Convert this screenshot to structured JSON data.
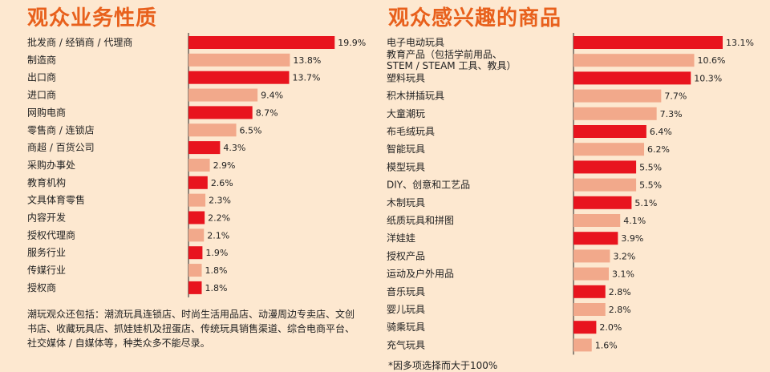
{
  "colors": {
    "dark": "#e8141e",
    "light": "#f2a98b",
    "title": "#e8601c",
    "background": "#fde8d0"
  },
  "chart_data": [
    {
      "type": "bar",
      "orientation": "horizontal",
      "title": "观众业务性质",
      "categories": [
        "批发商 / 经销商 / 代理商",
        "制造商",
        "出口商",
        "进口商",
        "网购电商",
        "零售商 / 连锁店",
        "商超 / 百货公司",
        "采购办事处",
        "教育机构",
        "文具体育零售",
        "内容开发",
        "授权代理商",
        "服务行业",
        "传媒行业",
        "授权商"
      ],
      "values": [
        19.9,
        13.8,
        13.7,
        9.4,
        8.7,
        6.5,
        4.3,
        2.9,
        2.6,
        2.3,
        2.2,
        2.1,
        1.9,
        1.8,
        1.8
      ],
      "value_labels": [
        "19.9%",
        "13.8%",
        "13.7%",
        "9.4%",
        "8.7%",
        "6.5%",
        "4.3%",
        "2.9%",
        "2.6%",
        "2.3%",
        "2.2%",
        "2.1%",
        "1.9%",
        "1.8%",
        "1.8%"
      ],
      "bar_colors": [
        "dark",
        "light",
        "dark",
        "light",
        "dark",
        "light",
        "dark",
        "light",
        "dark",
        "light",
        "dark",
        "light",
        "dark",
        "light",
        "dark"
      ],
      "value_unit": "%"
    },
    {
      "type": "bar",
      "orientation": "horizontal",
      "title": "观众感兴趣的商品",
      "categories": [
        [
          "电子电动玩具"
        ],
        [
          "教育产品（包括学前用品、",
          "STEM / STEAM 工具、教具）"
        ],
        [
          "塑料玩具"
        ],
        [
          "积木拼插玩具"
        ],
        [
          "大童潮玩"
        ],
        [
          "布毛绒玩具"
        ],
        [
          "智能玩具"
        ],
        [
          "模型玩具"
        ],
        [
          "DIY、创意和工艺品"
        ],
        [
          "木制玩具"
        ],
        [
          "纸质玩具和拼图"
        ],
        [
          "洋娃娃"
        ],
        [
          "授权产品"
        ],
        [
          "运动及户外用品"
        ],
        [
          "音乐玩具"
        ],
        [
          "婴儿玩具"
        ],
        [
          "骑乘玩具"
        ],
        [
          "充气玩具"
        ]
      ],
      "values": [
        13.1,
        10.6,
        10.3,
        7.7,
        7.3,
        6.4,
        6.2,
        5.5,
        5.5,
        5.1,
        4.1,
        3.9,
        3.2,
        3.1,
        2.8,
        2.8,
        2.0,
        1.6
      ],
      "value_labels": [
        "13.1%",
        "10.6%",
        "10.3%",
        "7.7%",
        "7.3%",
        "6.4%",
        "6.2%",
        "5.5%",
        "5.5%",
        "5.1%",
        "4.1%",
        "3.9%",
        "3.2%",
        "3.1%",
        "2.8%",
        "2.8%",
        "2.0%",
        "1.6%"
      ],
      "bar_colors": [
        "dark",
        "light",
        "dark",
        "light",
        "light",
        "dark",
        "light",
        "dark",
        "light",
        "dark",
        "light",
        "dark",
        "light",
        "light",
        "dark",
        "light",
        "dark",
        "light"
      ],
      "value_unit": "%"
    }
  ],
  "notes": {
    "left": "潮玩观众还包括：潮流玩具连锁店、时尚生活用品店、动漫周边专卖店、文创书店、收藏玩具店、抓娃娃机及扭蛋店、传统玩具销售渠道、综合电商平台、社交媒体 / 自媒体等，种类众多不能尽录。",
    "right": "*因多项选择而大于100%"
  }
}
